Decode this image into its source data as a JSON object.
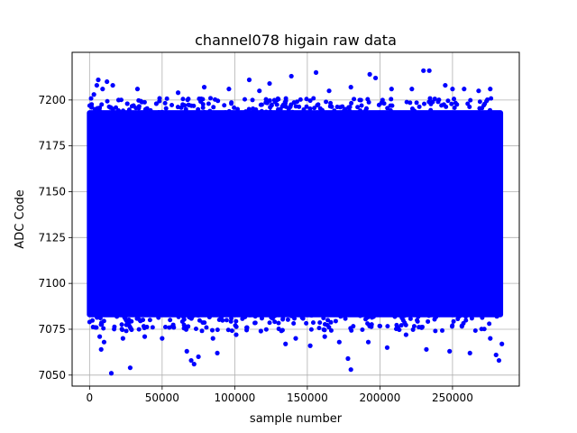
{
  "chart_data": {
    "type": "scatter",
    "title": "channel078 higain raw data",
    "xlabel": "sample number",
    "ylabel": "ADC Code",
    "xlim": [
      -12000,
      296000
    ],
    "ylim": [
      7044,
      7226
    ],
    "xticks": [
      0,
      50000,
      100000,
      150000,
      200000,
      250000
    ],
    "xtick_labels": [
      "0",
      "50000",
      "100000",
      "150000",
      "200000",
      "250000"
    ],
    "yticks": [
      7050,
      7075,
      7100,
      7125,
      7150,
      7175,
      7200
    ],
    "ytick_labels": [
      "7050",
      "7075",
      "7100",
      "7125",
      "7150",
      "7175",
      "7200"
    ],
    "grid": true,
    "marker_color": "#0000ff",
    "series": [
      {
        "dense_band": {
          "x": [
            0,
            283000
          ],
          "y": [
            7083,
            7193
          ]
        },
        "outliers": [
          [
            1500,
            7196
          ],
          [
            3000,
            7203
          ],
          [
            5000,
            7208
          ],
          [
            6000,
            7211
          ],
          [
            9000,
            7206
          ],
          [
            12000,
            7210
          ],
          [
            16000,
            7208
          ],
          [
            20000,
            7200
          ],
          [
            26000,
            7198
          ],
          [
            33000,
            7206
          ],
          [
            46000,
            7198
          ],
          [
            61000,
            7204
          ],
          [
            79000,
            7207
          ],
          [
            96000,
            7206
          ],
          [
            110000,
            7211
          ],
          [
            117000,
            7205
          ],
          [
            124000,
            7209
          ],
          [
            139000,
            7213
          ],
          [
            156000,
            7215
          ],
          [
            165000,
            7205
          ],
          [
            180000,
            7207
          ],
          [
            193000,
            7214
          ],
          [
            197000,
            7212
          ],
          [
            208000,
            7206
          ],
          [
            222000,
            7206
          ],
          [
            230000,
            7216
          ],
          [
            234000,
            7216
          ],
          [
            245000,
            7208
          ],
          [
            250000,
            7206
          ],
          [
            258000,
            7206
          ],
          [
            268000,
            7205
          ],
          [
            276000,
            7206
          ],
          [
            4000,
            7076
          ],
          [
            7000,
            7071
          ],
          [
            8000,
            7064
          ],
          [
            10000,
            7068
          ],
          [
            15000,
            7051
          ],
          [
            23000,
            7070
          ],
          [
            28000,
            7054
          ],
          [
            38000,
            7071
          ],
          [
            50000,
            7070
          ],
          [
            58000,
            7076
          ],
          [
            67000,
            7063
          ],
          [
            70000,
            7058
          ],
          [
            72000,
            7056
          ],
          [
            75000,
            7060
          ],
          [
            85000,
            7070
          ],
          [
            88000,
            7062
          ],
          [
            101000,
            7072
          ],
          [
            118000,
            7074
          ],
          [
            135000,
            7067
          ],
          [
            142000,
            7070
          ],
          [
            152000,
            7066
          ],
          [
            162000,
            7071
          ],
          [
            172000,
            7068
          ],
          [
            178000,
            7059
          ],
          [
            180000,
            7053
          ],
          [
            192000,
            7068
          ],
          [
            205000,
            7065
          ],
          [
            218000,
            7072
          ],
          [
            232000,
            7064
          ],
          [
            248000,
            7063
          ],
          [
            262000,
            7062
          ],
          [
            276000,
            7070
          ],
          [
            280000,
            7061
          ],
          [
            282000,
            7058
          ],
          [
            284000,
            7067
          ]
        ]
      }
    ]
  }
}
